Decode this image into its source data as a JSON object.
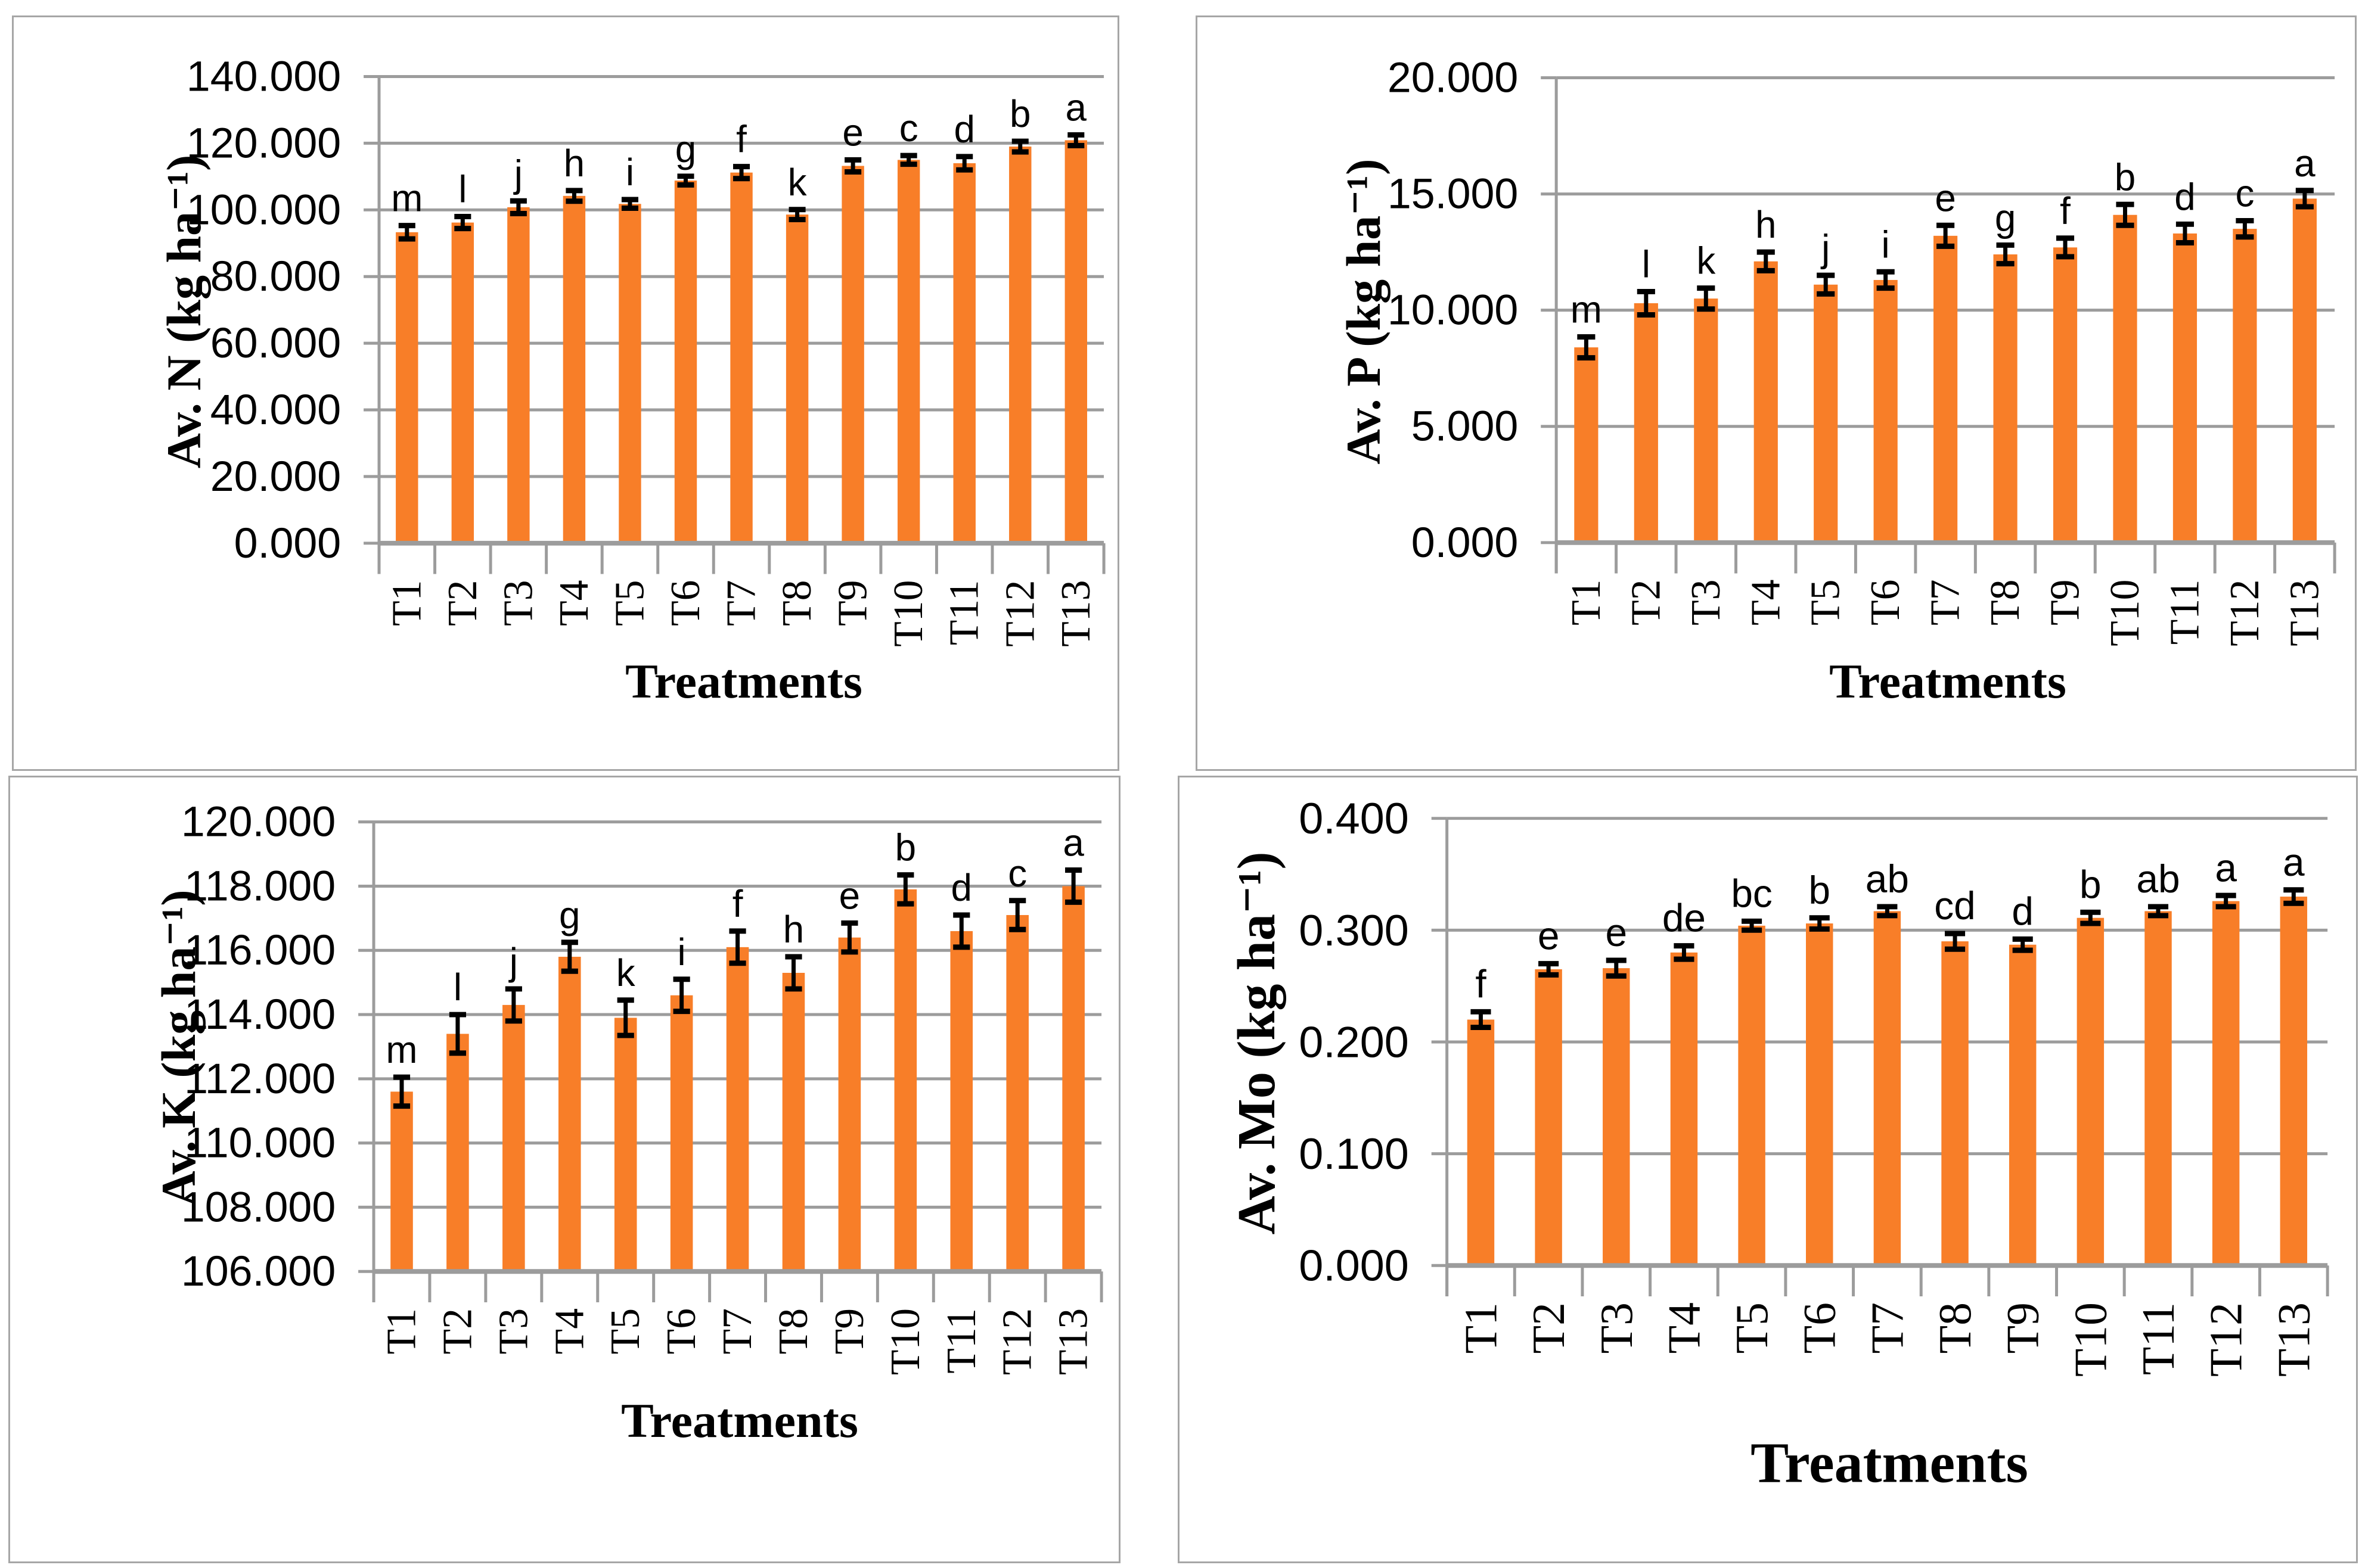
{
  "figure": {
    "description": "Four bar charts of available soil nutrients (N, P, K, Mo) under treatments T1-T13 with error bars and significance letters",
    "panels": [
      "top-left",
      "top-right",
      "bottom-left",
      "bottom-right"
    ]
  },
  "colors": {
    "bar": "#F87E28",
    "grid": "#9c9c9c",
    "axis": "#9c9c9c",
    "panel_border": "#a6a6a6",
    "error_bar": "#000000",
    "text": "#000000",
    "background": "#ffffff"
  },
  "chart_data": [
    {
      "type": "bar",
      "panel": "top-left",
      "title": "",
      "ylabel": "Av. N (kg ha⁻¹)",
      "xlabel": "Treatments",
      "categories": [
        "T1",
        "T2",
        "T3",
        "T4",
        "T5",
        "T6",
        "T7",
        "T8",
        "T9",
        "T10",
        "T11",
        "T12",
        "T13"
      ],
      "values": [
        93.3,
        96.2,
        100.8,
        104.2,
        101.8,
        108.8,
        111.2,
        98.6,
        113.2,
        115.0,
        114.0,
        119.0,
        120.9
      ],
      "errors": [
        2.0,
        1.8,
        1.9,
        1.6,
        1.3,
        1.3,
        1.8,
        1.5,
        1.8,
        1.3,
        2.0,
        1.6,
        1.6
      ],
      "sig_letters": [
        "m",
        "l",
        "j",
        "h",
        "i",
        "g",
        "f",
        "k",
        "e",
        "c",
        "d",
        "b",
        "a"
      ],
      "ymin": 0,
      "ymax": 140,
      "ystep": 20,
      "ytick_labels": [
        "0.000",
        "20.000",
        "40.000",
        "60.000",
        "80.000",
        "100.000",
        "120.000",
        "140.000"
      ],
      "grid": true,
      "legend": "none"
    },
    {
      "type": "bar",
      "panel": "top-right",
      "title": "",
      "ylabel": "Av. P (kg ha⁻¹)",
      "xlabel": "Treatments",
      "categories": [
        "T1",
        "T2",
        "T3",
        "T4",
        "T5",
        "T6",
        "T7",
        "T8",
        "T9",
        "T10",
        "T11",
        "T12",
        "T13"
      ],
      "values": [
        8.4,
        10.3,
        10.5,
        12.1,
        11.1,
        11.3,
        13.2,
        12.4,
        12.7,
        14.1,
        13.3,
        13.5,
        14.8
      ],
      "errors": [
        0.45,
        0.5,
        0.45,
        0.4,
        0.4,
        0.35,
        0.45,
        0.4,
        0.4,
        0.45,
        0.4,
        0.35,
        0.35
      ],
      "sig_letters": [
        "m",
        "l",
        "k",
        "h",
        "j",
        "i",
        "e",
        "g",
        "f",
        "b",
        "d",
        "c",
        "a"
      ],
      "ymin": 0,
      "ymax": 20,
      "ystep": 5,
      "ytick_labels": [
        "0.000",
        "5.000",
        "10.000",
        "15.000",
        "20.000"
      ],
      "grid": true,
      "legend": "none"
    },
    {
      "type": "bar",
      "panel": "bottom-left",
      "title": "",
      "ylabel": "Av. K (kg ha⁻¹)",
      "xlabel": "Treatments",
      "categories": [
        "T1",
        "T2",
        "T3",
        "T4",
        "T5",
        "T6",
        "T7",
        "T8",
        "T9",
        "T10",
        "T11",
        "T12",
        "T13"
      ],
      "values": [
        111.6,
        113.4,
        114.3,
        115.8,
        113.9,
        114.6,
        116.1,
        115.3,
        116.4,
        117.9,
        116.6,
        117.1,
        118.0
      ],
      "errors": [
        0.45,
        0.6,
        0.5,
        0.45,
        0.55,
        0.5,
        0.5,
        0.5,
        0.45,
        0.45,
        0.5,
        0.45,
        0.5
      ],
      "sig_letters": [
        "m",
        "l",
        "j",
        "g",
        "k",
        "i",
        "f",
        "h",
        "e",
        "b",
        "d",
        "c",
        "a"
      ],
      "ymin": 106,
      "ymax": 120,
      "ystep": 2,
      "ytick_labels": [
        "106.000",
        "108.000",
        "110.000",
        "112.000",
        "114.000",
        "116.000",
        "118.000",
        "120.000"
      ],
      "grid": true,
      "legend": "none"
    },
    {
      "type": "bar",
      "panel": "bottom-right",
      "title": "",
      "ylabel": "Av. Mo (kg ha⁻¹)",
      "xlabel": "Treatments",
      "categories": [
        "T1",
        "T2",
        "T3",
        "T4",
        "T5",
        "T6",
        "T7",
        "T8",
        "T9",
        "T10",
        "T11",
        "T12",
        "T13"
      ],
      "values": [
        0.22,
        0.265,
        0.266,
        0.28,
        0.304,
        0.306,
        0.317,
        0.29,
        0.287,
        0.311,
        0.317,
        0.326,
        0.33
      ],
      "errors": [
        0.007,
        0.005,
        0.007,
        0.006,
        0.004,
        0.005,
        0.004,
        0.007,
        0.005,
        0.005,
        0.004,
        0.005,
        0.006
      ],
      "sig_letters": [
        "f",
        "e",
        "e",
        "de",
        "bc",
        "b",
        "ab",
        "cd",
        "d",
        "b",
        "ab",
        "a",
        "a"
      ],
      "ymin": 0,
      "ymax": 0.4,
      "ystep": 0.1,
      "ytick_labels": [
        "0.000",
        "0.100",
        "0.200",
        "0.300",
        "0.400"
      ],
      "grid": true,
      "legend": "none"
    }
  ]
}
